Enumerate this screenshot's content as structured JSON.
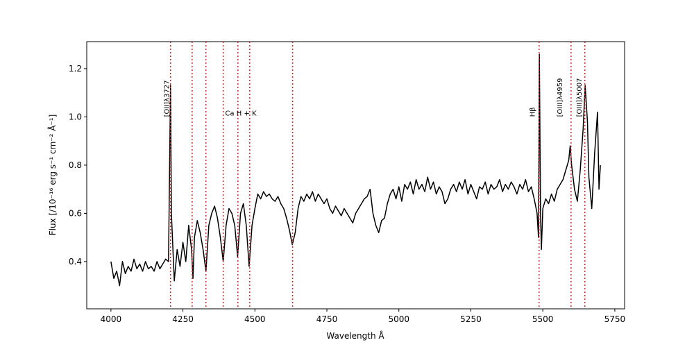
{
  "chart_data": {
    "type": "line",
    "x_label": "Wavelength Å",
    "y_label": "Flux [/10⁻¹⁶ erg s⁻¹ cm⁻² Å⁻¹]",
    "color": "#000000",
    "line_color": "#d62728",
    "xlim": [
      3916,
      5784
    ],
    "ylim": [
      0.204,
      1.312
    ],
    "xticks": [
      4000,
      4250,
      4500,
      4750,
      5000,
      5250,
      5500,
      5750
    ],
    "yticks": [
      0.4,
      0.6,
      0.8,
      {
        "value": 1.0,
        "label": "1.0"
      },
      1.2
    ],
    "vlines": [
      4207,
      4282,
      4330,
      4390,
      4441,
      4482,
      4631,
      5487,
      5598,
      5646
    ],
    "annotations": [
      {
        "text": "[OII]λ3727",
        "x": 4202,
        "y": 1.0,
        "rotation": 90
      },
      {
        "text": "Ca H + K",
        "x": 4451,
        "y": 1.0,
        "rotation": 0
      },
      {
        "text": "Hβ",
        "x": 5472,
        "y": 1.0,
        "rotation": 90
      },
      {
        "text": "[OIII]λ4959",
        "x": 5567,
        "y": 1.0,
        "rotation": 90
      },
      {
        "text": "[OIII]λ5007",
        "x": 5634,
        "y": 1.0,
        "rotation": 90
      }
    ],
    "x": [
      4000,
      4010,
      4020,
      4030,
      4040,
      4050,
      4060,
      4070,
      4080,
      4090,
      4100,
      4110,
      4120,
      4130,
      4140,
      4150,
      4160,
      4170,
      4180,
      4190,
      4200,
      4207,
      4210,
      4220,
      4230,
      4240,
      4250,
      4260,
      4270,
      4280,
      4285,
      4290,
      4300,
      4310,
      4320,
      4330,
      4340,
      4350,
      4360,
      4370,
      4380,
      4390,
      4400,
      4410,
      4420,
      4430,
      4440,
      4450,
      4460,
      4470,
      4480,
      4490,
      4500,
      4510,
      4520,
      4530,
      4540,
      4550,
      4560,
      4570,
      4580,
      4590,
      4600,
      4610,
      4620,
      4630,
      4640,
      4650,
      4660,
      4670,
      4680,
      4690,
      4700,
      4710,
      4720,
      4730,
      4740,
      4750,
      4760,
      4770,
      4780,
      4790,
      4800,
      4810,
      4820,
      4830,
      4840,
      4850,
      4860,
      4870,
      4880,
      4890,
      4900,
      4910,
      4920,
      4930,
      4940,
      4950,
      4960,
      4970,
      4980,
      4990,
      5000,
      5010,
      5020,
      5030,
      5040,
      5050,
      5060,
      5070,
      5080,
      5090,
      5100,
      5110,
      5120,
      5130,
      5140,
      5150,
      5160,
      5170,
      5180,
      5190,
      5200,
      5210,
      5220,
      5230,
      5240,
      5250,
      5260,
      5270,
      5280,
      5290,
      5300,
      5310,
      5320,
      5330,
      5340,
      5350,
      5360,
      5370,
      5380,
      5390,
      5400,
      5410,
      5420,
      5430,
      5440,
      5450,
      5460,
      5470,
      5480,
      5485,
      5488,
      5492,
      5495,
      5500,
      5510,
      5520,
      5530,
      5540,
      5550,
      5560,
      5570,
      5580,
      5590,
      5595,
      5600,
      5610,
      5620,
      5630,
      5640,
      5647,
      5655,
      5660,
      5670,
      5680,
      5690,
      5695,
      5700
    ],
    "values": [
      0.4,
      0.33,
      0.36,
      0.3,
      0.4,
      0.35,
      0.38,
      0.36,
      0.41,
      0.37,
      0.39,
      0.36,
      0.4,
      0.37,
      0.38,
      0.36,
      0.4,
      0.37,
      0.39,
      0.41,
      0.4,
      1.13,
      0.6,
      0.32,
      0.45,
      0.38,
      0.48,
      0.4,
      0.55,
      0.45,
      0.33,
      0.5,
      0.57,
      0.52,
      0.45,
      0.36,
      0.55,
      0.6,
      0.63,
      0.58,
      0.5,
      0.4,
      0.55,
      0.62,
      0.6,
      0.55,
      0.42,
      0.6,
      0.64,
      0.55,
      0.38,
      0.55,
      0.62,
      0.68,
      0.66,
      0.69,
      0.67,
      0.68,
      0.66,
      0.65,
      0.67,
      0.64,
      0.62,
      0.58,
      0.53,
      0.47,
      0.52,
      0.62,
      0.67,
      0.65,
      0.68,
      0.66,
      0.69,
      0.65,
      0.68,
      0.66,
      0.64,
      0.66,
      0.62,
      0.6,
      0.63,
      0.61,
      0.59,
      0.62,
      0.6,
      0.58,
      0.56,
      0.6,
      0.62,
      0.64,
      0.66,
      0.67,
      0.7,
      0.6,
      0.55,
      0.52,
      0.57,
      0.58,
      0.64,
      0.68,
      0.7,
      0.66,
      0.71,
      0.65,
      0.72,
      0.7,
      0.73,
      0.68,
      0.74,
      0.7,
      0.72,
      0.69,
      0.75,
      0.7,
      0.73,
      0.68,
      0.71,
      0.69,
      0.64,
      0.66,
      0.7,
      0.72,
      0.69,
      0.73,
      0.7,
      0.74,
      0.68,
      0.72,
      0.69,
      0.66,
      0.71,
      0.7,
      0.73,
      0.68,
      0.72,
      0.7,
      0.71,
      0.74,
      0.69,
      0.72,
      0.7,
      0.73,
      0.71,
      0.68,
      0.72,
      0.7,
      0.74,
      0.69,
      0.71,
      0.66,
      0.6,
      0.5,
      1.26,
      0.6,
      0.45,
      0.62,
      0.66,
      0.64,
      0.68,
      0.65,
      0.7,
      0.72,
      0.74,
      0.78,
      0.82,
      0.88,
      0.8,
      0.7,
      0.65,
      0.78,
      0.95,
      1.13,
      0.98,
      0.75,
      0.62,
      0.85,
      1.02,
      0.7,
      0.8
    ]
  }
}
